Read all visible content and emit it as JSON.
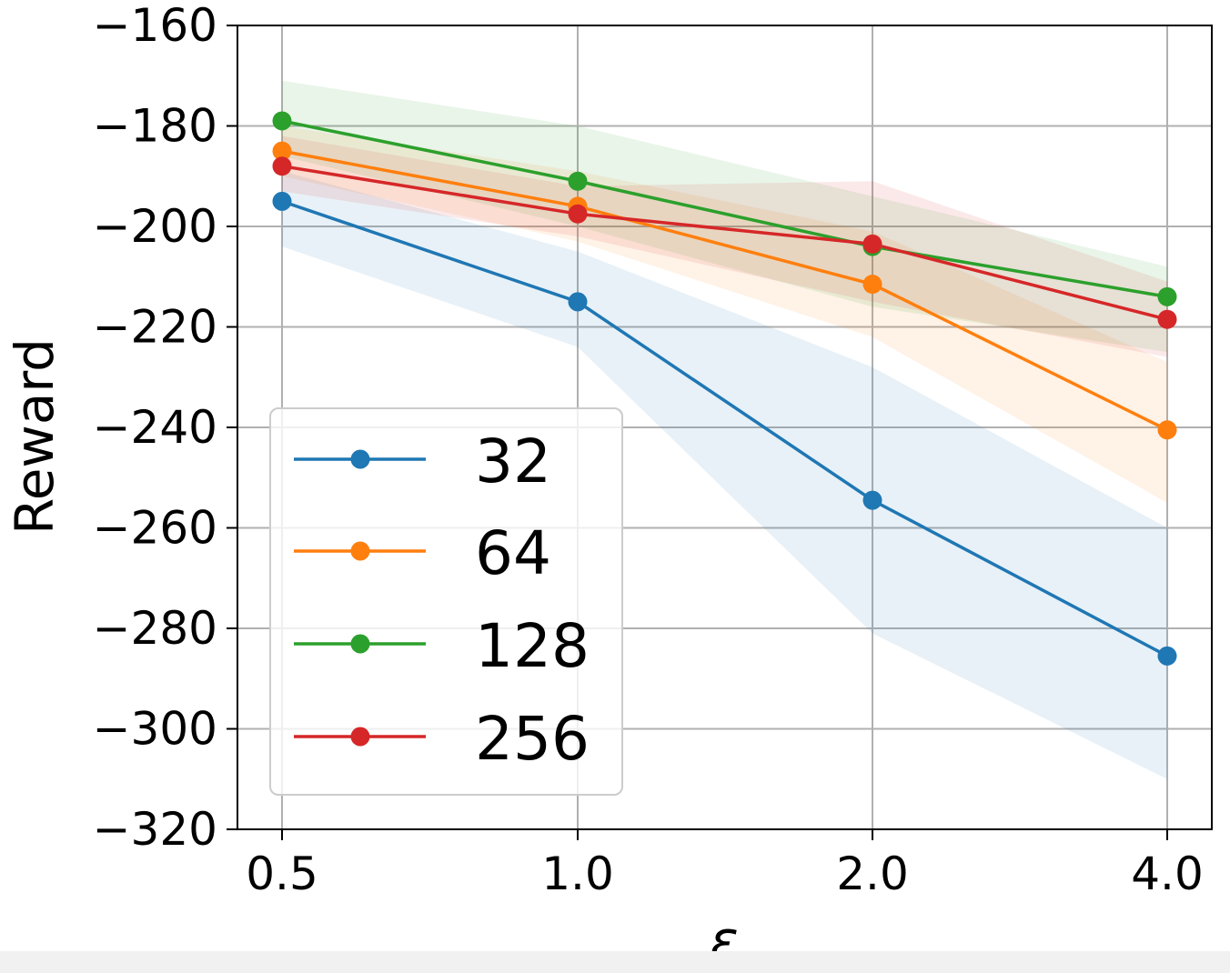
{
  "chart_data": {
    "type": "line",
    "xlabel": "ε",
    "ylabel": "Reward",
    "x_tick_labels": [
      "0.5",
      "1.0",
      "2.0",
      "4.0"
    ],
    "y_ticks": [
      -160,
      -180,
      -200,
      -220,
      -240,
      -260,
      -280,
      -300,
      -320
    ],
    "y_tick_labels": [
      "−160",
      "−180",
      "−200",
      "−220",
      "−240",
      "−260",
      "−280",
      "−300",
      "−320"
    ],
    "ylim": [
      -320,
      -160
    ],
    "x_scale": "categorical (evenly spaced)",
    "grid": true,
    "legend_position": "lower-left",
    "series": [
      {
        "name": "32",
        "color": "#1f77b4",
        "values": [
          -195,
          -215,
          -254.5,
          -285.5
        ],
        "band_lower": [
          -204,
          -224,
          -281,
          -310
        ],
        "band_upper": [
          -189,
          -205,
          -228,
          -260
        ]
      },
      {
        "name": "64",
        "color": "#ff7f0e",
        "values": [
          -185,
          -196,
          -211.5,
          -240.5
        ],
        "band_lower": [
          -190,
          -203,
          -222,
          -255
        ],
        "band_upper": [
          -180,
          -189,
          -201,
          -227
        ]
      },
      {
        "name": "128",
        "color": "#2ca02c",
        "values": [
          -179,
          -191,
          -204,
          -214
        ],
        "band_lower": [
          -186,
          -200,
          -216,
          -225
        ],
        "band_upper": [
          -171,
          -180,
          -194,
          -208
        ]
      },
      {
        "name": "256",
        "color": "#d62728",
        "values": [
          -188,
          -197.5,
          -203.5,
          -218.5
        ],
        "band_lower": [
          -193,
          -202,
          -215,
          -226
        ],
        "band_upper": [
          -182,
          -192,
          -191,
          -211
        ]
      }
    ]
  }
}
